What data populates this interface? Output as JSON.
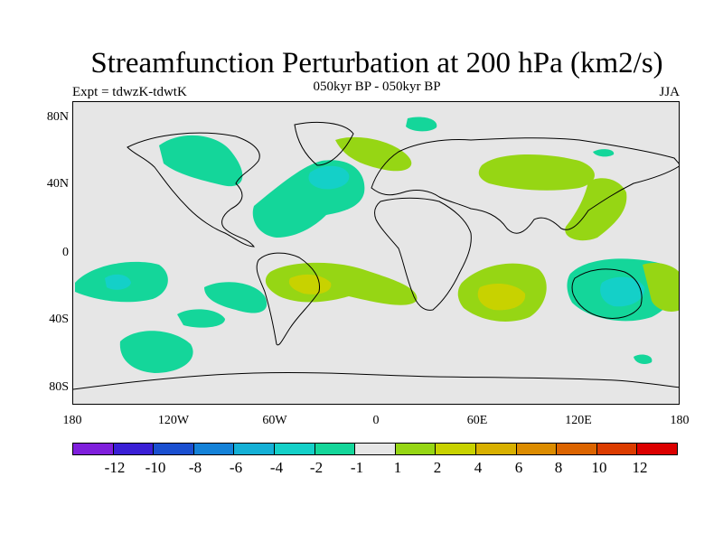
{
  "title": "Streamfunction Perturbation at 200 hPa (km2/s)",
  "subtitle": "050kyr BP - 050kyr BP",
  "left_label": "Expt = tdwzK-tdwtK",
  "right_label": "JJA",
  "y_ticks": [
    "80N",
    "40N",
    "0",
    "40S",
    "80S"
  ],
  "x_ticks": [
    "180",
    "120W",
    "60W",
    "0",
    "60E",
    "120E",
    "180"
  ],
  "colorbar": {
    "colors": [
      "#7f1fdc",
      "#3a1fd6",
      "#1a4fd0",
      "#1482d8",
      "#14b0d6",
      "#14d0c8",
      "#14d69a",
      "#e6e6e6",
      "#96d614",
      "#c8d200",
      "#d8b000",
      "#dc8c00",
      "#dc6400",
      "#dc3c00",
      "#dc0000"
    ],
    "labels": [
      "-12",
      "-10",
      "-8",
      "-6",
      "-4",
      "-2",
      "-1",
      "1",
      "2",
      "4",
      "6",
      "8",
      "10",
      "12"
    ]
  },
  "map": {
    "background": "#e6e6e6",
    "colors": {
      "neg1": "#14d69a",
      "neg2": "#14d0c8",
      "pos1": "#96d614",
      "pos2": "#c8d200"
    }
  }
}
